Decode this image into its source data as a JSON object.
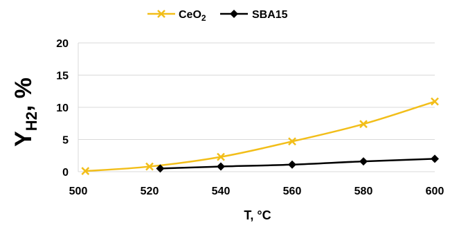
{
  "chart_data": {
    "type": "line",
    "title": "",
    "xlabel": "T, °C",
    "ylabel": {
      "main": "Y",
      "sub": "H2",
      "suffix": ", %"
    },
    "xlim": [
      500,
      600
    ],
    "ylim": [
      0,
      20
    ],
    "xticks": [
      "500",
      "520",
      "540",
      "560",
      "580",
      "600"
    ],
    "yticks": [
      "0",
      "5",
      "10",
      "15",
      "20"
    ],
    "grid": "horizontal",
    "legend": "top-center",
    "series": [
      {
        "name": "CeO",
        "name_sub": "2",
        "color": "#F2BE19",
        "marker": "x",
        "x": [
          502,
          520,
          540,
          560,
          580,
          600
        ],
        "y": [
          0.1,
          0.8,
          2.3,
          4.7,
          7.4,
          10.9
        ]
      },
      {
        "name": "SBA15",
        "color": "#000000",
        "marker": "diamond",
        "x": [
          523,
          540,
          560,
          580,
          600
        ],
        "y": [
          0.5,
          0.8,
          1.1,
          1.6,
          2.0
        ]
      }
    ]
  }
}
